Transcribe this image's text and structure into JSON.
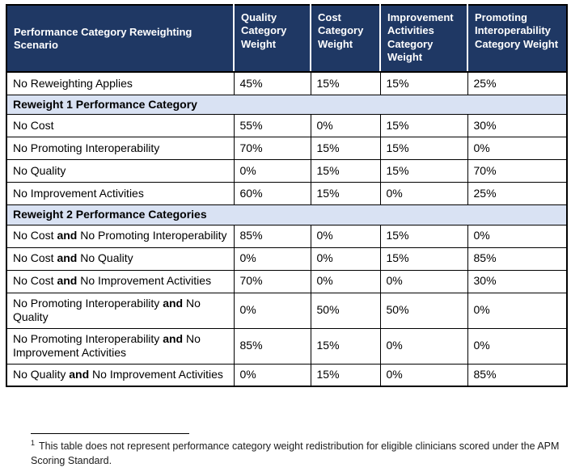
{
  "colors": {
    "header_bg": "#1F3864",
    "header_text": "#FFFFFF",
    "section_bg": "#D9E2F3",
    "border": "#000000",
    "page_bg": "#FFFFFF"
  },
  "table": {
    "headers": [
      "Performance Category Reweighting Scenario",
      "Quality Category Weight",
      "Cost Category Weight",
      "Improvement Activities Category Weight",
      "Promoting Interoperability Category Weight"
    ],
    "sections": [
      {
        "header": null,
        "rows": [
          {
            "scenario": [
              {
                "text": "No Reweighting Applies",
                "bold": false
              }
            ],
            "weights": [
              "45%",
              "15%",
              "15%",
              "25%"
            ]
          }
        ]
      },
      {
        "header": "Reweight 1 Performance Category",
        "rows": [
          {
            "scenario": [
              {
                "text": "No Cost",
                "bold": false
              }
            ],
            "weights": [
              "55%",
              "0%",
              "15%",
              "30%"
            ]
          },
          {
            "scenario": [
              {
                "text": "No Promoting Interoperability",
                "bold": false
              }
            ],
            "weights": [
              "70%",
              "15%",
              "15%",
              "0%"
            ]
          },
          {
            "scenario": [
              {
                "text": "No Quality",
                "bold": false
              }
            ],
            "weights": [
              "0%",
              "15%",
              "15%",
              "70%"
            ]
          },
          {
            "scenario": [
              {
                "text": "No Improvement Activities",
                "bold": false
              }
            ],
            "weights": [
              "60%",
              "15%",
              "0%",
              "25%"
            ]
          }
        ]
      },
      {
        "header": "Reweight 2 Performance Categories",
        "rows": [
          {
            "scenario": [
              {
                "text": "No Cost ",
                "bold": false
              },
              {
                "text": "and",
                "bold": true
              },
              {
                "text": " No Promoting Interoperability",
                "bold": false
              }
            ],
            "weights": [
              "85%",
              "0%",
              "15%",
              "0%"
            ]
          },
          {
            "scenario": [
              {
                "text": "No Cost ",
                "bold": false
              },
              {
                "text": "and",
                "bold": true
              },
              {
                "text": " No Quality",
                "bold": false
              }
            ],
            "weights": [
              "0%",
              "0%",
              "15%",
              "85%"
            ]
          },
          {
            "scenario": [
              {
                "text": "No Cost ",
                "bold": false
              },
              {
                "text": "and",
                "bold": true
              },
              {
                "text": " No Improvement Activities",
                "bold": false
              }
            ],
            "weights": [
              "70%",
              "0%",
              "0%",
              "30%"
            ]
          },
          {
            "scenario": [
              {
                "text": "No Promoting Interoperability ",
                "bold": false
              },
              {
                "text": "and",
                "bold": true
              },
              {
                "text": " No Quality",
                "bold": false
              }
            ],
            "weights": [
              "0%",
              "50%",
              "50%",
              "0%"
            ]
          },
          {
            "scenario": [
              {
                "text": "No Promoting Interoperability ",
                "bold": false
              },
              {
                "text": "and",
                "bold": true
              },
              {
                "text": " No Improvement Activities",
                "bold": false
              }
            ],
            "weights": [
              "85%",
              "15%",
              "0%",
              "0%"
            ]
          },
          {
            "scenario": [
              {
                "text": "No Quality ",
                "bold": false
              },
              {
                "text": "and",
                "bold": true
              },
              {
                "text": " No Improvement Activities",
                "bold": false
              }
            ],
            "weights": [
              "0%",
              "15%",
              "0%",
              "85%"
            ]
          }
        ]
      }
    ]
  },
  "footnote": {
    "marker": "1",
    "text": "This table does not represent performance category weight redistribution for eligible clinicians scored under the APM Scoring Standard."
  }
}
